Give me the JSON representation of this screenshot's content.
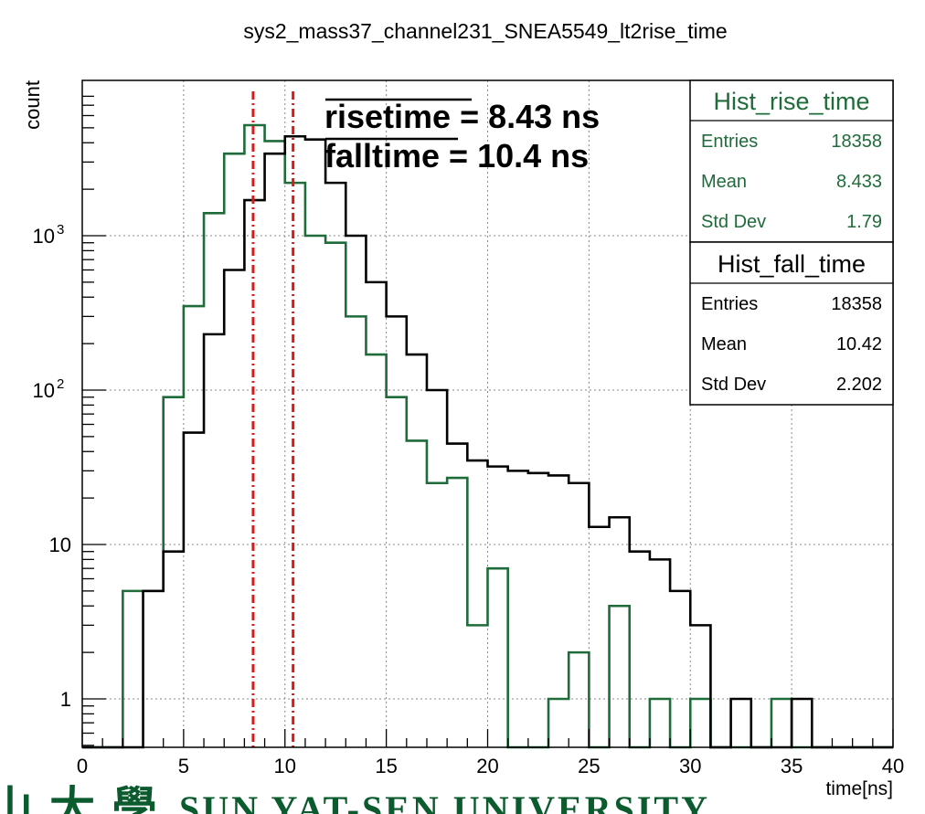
{
  "chart_data": {
    "type": "histogram",
    "title": "sys2_mass37_channel231_SNEA5549_lt2rise_time",
    "xlabel": "time[ns]",
    "ylabel": "count",
    "xlim": [
      0,
      40
    ],
    "ylim": [
      0.5,
      8000
    ],
    "y_scale": "log",
    "bin_width": 1,
    "x_ticks": [
      "0",
      "5",
      "10",
      "15",
      "20",
      "25",
      "30",
      "35",
      "40"
    ],
    "y_ticks": [
      {
        "value": 1,
        "label": "1"
      },
      {
        "value": 10,
        "label": "10"
      },
      {
        "value": 100,
        "label": "10",
        "exponent": "2"
      },
      {
        "value": 1000,
        "label": "10",
        "exponent": "3"
      }
    ],
    "grid": true,
    "series": [
      {
        "name": "Hist_rise_time",
        "color": "#1f6b3a",
        "x_start": 0,
        "values": [
          0,
          0,
          5,
          5,
          90,
          350,
          1400,
          3400,
          5200,
          4100,
          2200,
          1000,
          900,
          300,
          170,
          90,
          47,
          25,
          27,
          3,
          7,
          0,
          0,
          1,
          2,
          0,
          4,
          0,
          1,
          0,
          1,
          0,
          0,
          0,
          1,
          0,
          0,
          0,
          0,
          0
        ]
      },
      {
        "name": "Hist_fall_time",
        "color": "#000000",
        "x_start": 0,
        "values": [
          0,
          0,
          0,
          5,
          9,
          53,
          230,
          600,
          1700,
          3400,
          4400,
          4200,
          2200,
          1000,
          500,
          300,
          170,
          100,
          45,
          35,
          32,
          30,
          29,
          28,
          25,
          13,
          15,
          9,
          8,
          5,
          3,
          0,
          1,
          0,
          0,
          1,
          0,
          0,
          0,
          0
        ]
      }
    ],
    "vlines": [
      {
        "x": 8.43,
        "color": "#e01818",
        "style": "dash-dot"
      },
      {
        "x": 10.4,
        "color": "#e01818",
        "style": "dash-dot"
      }
    ],
    "annotations": [
      {
        "name": "risetime",
        "value": "8.43",
        "unit": "ns",
        "overline": true
      },
      {
        "name": "falltime",
        "value": "10.4",
        "unit": "ns",
        "overline": true
      }
    ],
    "stats_boxes": [
      {
        "title": "Hist_rise_time",
        "color": "#1f6b3a",
        "rows": [
          {
            "label": "Entries",
            "value": "18358"
          },
          {
            "label": "Mean",
            "value": "8.433"
          },
          {
            "label": "Std Dev",
            "value": "1.79"
          }
        ]
      },
      {
        "title": "Hist_fall_time",
        "color": "#000000",
        "rows": [
          {
            "label": "Entries",
            "value": "18358"
          },
          {
            "label": "Mean",
            "value": "10.42"
          },
          {
            "label": "Std Dev",
            "value": "2.202"
          }
        ]
      }
    ]
  },
  "logo": {
    "chinese": "山大學",
    "english": "SUN YAT-SEN UNIVERSITY",
    "color": "#0c5b2e"
  }
}
